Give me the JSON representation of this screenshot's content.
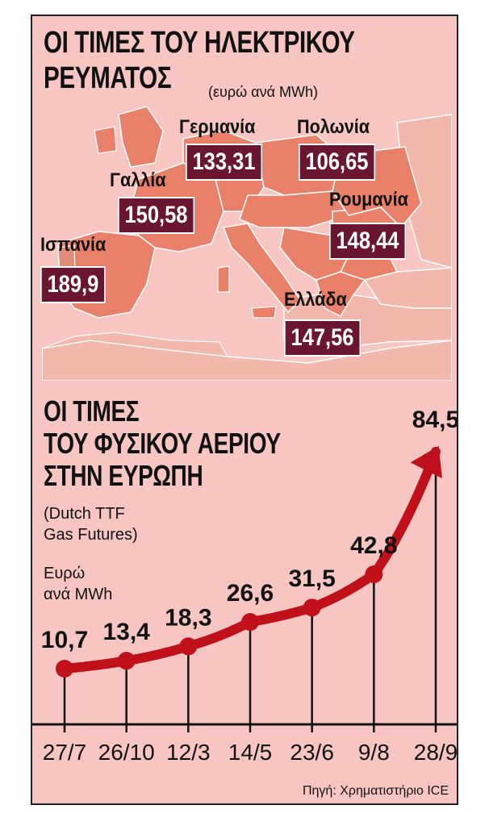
{
  "map": {
    "title_line1": "ΟΙ ΤΙΜΕΣ ΤΟΥ ΗΛΕΚΤΡΙΚΟΥ",
    "title_line2": "ΡΕΥΜΑΤΟΣ",
    "unit": "(ευρώ ανά MWh)",
    "countries": [
      {
        "name": "Γερμανία",
        "price": "133,31"
      },
      {
        "name": "Πολωνία",
        "price": "106,65"
      },
      {
        "name": "Γαλλία",
        "price": "150,58"
      },
      {
        "name": "Ρουμανία",
        "price": "148,44"
      },
      {
        "name": "Ισπανία",
        "price": "189,9"
      },
      {
        "name": "Ελλάδα",
        "price": "147,56"
      }
    ]
  },
  "gas": {
    "title_line1": "ΟΙ ΤΙΜΕΣ",
    "title_line2": "ΤΟΥ ΦΥΣΙΚΟΥ ΑΕΡΙΟΥ",
    "title_line3": "ΣΤΗΝ ΕΥΡΩΠΗ",
    "subtitle_line1": "(Dutch TTF",
    "subtitle_line2": "Gas Futures)",
    "unit_line1": "Ευρώ",
    "unit_line2": "ανά MWh"
  },
  "source": "Πηγή: Χρηματιστήριο ICE",
  "colors": {
    "background": "#f7c6c3",
    "map_land": "#e8806a",
    "map_land_other": "#f2b8ac",
    "price_box": "#6b1630",
    "line": "#c0101a"
  },
  "chart_data": {
    "type": "line",
    "categories": [
      "27/7",
      "26/10",
      "12/3",
      "14/5",
      "23/6",
      "9/8",
      "28/9"
    ],
    "values": [
      10.7,
      13.4,
      18.3,
      26.6,
      31.5,
      42.8,
      84.5
    ],
    "labels": [
      "10,7",
      "13,4",
      "18,3",
      "26,6",
      "31,5",
      "42,8",
      "84,5"
    ],
    "ylabel": "Ευρώ ανά MWh",
    "ylim": [
      0,
      90
    ],
    "grid": false
  }
}
